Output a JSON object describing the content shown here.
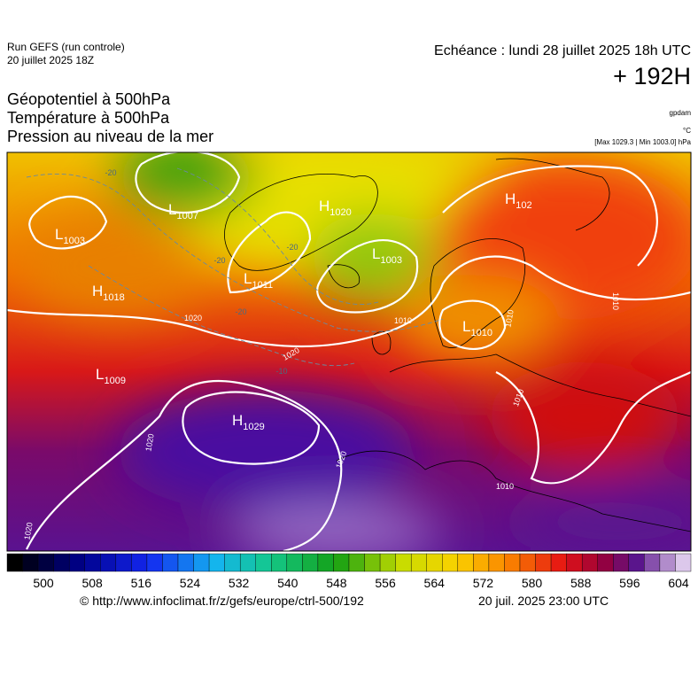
{
  "header": {
    "run": "Run GEFS (run controle)",
    "run_date": "20 juillet 2025 18Z",
    "valid": "Echéance : lundi 28 juillet 2025 18h UTC",
    "lead": "+ 192H",
    "fields": [
      "Géopotentiel à 500hPa",
      "Température à 500hPa",
      "Pression au niveau de la mer"
    ],
    "units": [
      "gpdam",
      "°C",
      "[Max 1029.3 | Min 1003.0] hPa"
    ]
  },
  "map": {
    "centers": [
      {
        "letter": "L",
        "value": 1003
      },
      {
        "letter": "H",
        "value": 1018
      },
      {
        "letter": "L",
        "value": 1009
      },
      {
        "letter": "L",
        "value": 1007
      },
      {
        "letter": "H",
        "value": 1020
      },
      {
        "letter": "L",
        "value": 1011
      },
      {
        "letter": "L",
        "value": 1003
      },
      {
        "letter": "H",
        "value": 1029
      },
      {
        "letter": "L",
        "value": 1010
      },
      {
        "letter": "H",
        "value": 102
      }
    ],
    "isobar_labels": [
      1020,
      1020,
      1020,
      1020,
      1020,
      1010,
      1010,
      1010,
      1010,
      1010
    ],
    "isotherm_labels": [
      -20,
      -20,
      -20,
      -20,
      -10
    ]
  },
  "colorbar": {
    "ticks": [
      500,
      508,
      516,
      524,
      532,
      540,
      548,
      556,
      564,
      572,
      580,
      588,
      596,
      604
    ]
  },
  "footer": {
    "source": "© http://www.infoclimat.fr/z/gefs/europe/ctrl-500/192",
    "issued": "20 juil. 2025 23:00 UTC"
  }
}
